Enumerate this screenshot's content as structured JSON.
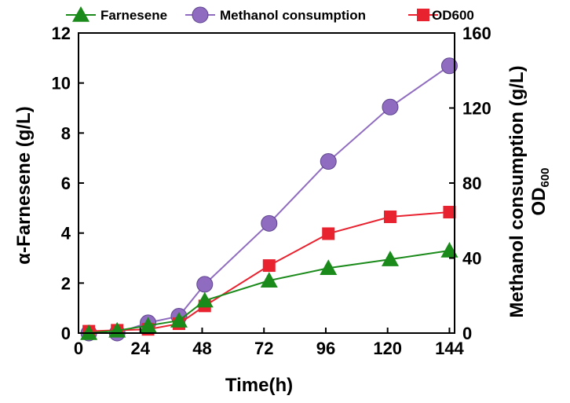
{
  "chart_data": {
    "type": "line",
    "x": [
      4,
      15,
      27,
      39,
      49,
      74,
      97,
      121,
      144
    ],
    "series": [
      {
        "name": "Farnesene",
        "axis": "left",
        "color": "#1a8a1a",
        "marker": "triangle",
        "values": [
          0.0,
          0.1,
          0.3,
          0.5,
          1.3,
          2.1,
          2.6,
          2.95,
          3.3
        ],
        "errors": [
          0,
          0,
          0,
          0,
          0,
          0,
          0,
          0,
          0
        ]
      },
      {
        "name": "Methanol consumption",
        "axis": "right",
        "color": "#8f6cbf",
        "marker": "circle",
        "values": [
          0,
          0,
          5.5,
          9,
          26,
          58.5,
          91.5,
          120.5,
          142.5
        ],
        "errors": [
          0,
          0,
          0,
          0,
          0,
          0,
          2,
          3,
          3.5
        ]
      },
      {
        "name": "OD600",
        "axis": "right",
        "color": "#e8222f",
        "marker": "square",
        "values": [
          1,
          1.5,
          2,
          5,
          14.5,
          36,
          53,
          62,
          64.5
        ],
        "errors": [
          0,
          0,
          0,
          0,
          0,
          0,
          0,
          0,
          0
        ]
      }
    ],
    "xlabel": "Time(h)",
    "ylabel_left": "α-Farnesene (g/L)",
    "ylabel_right_1": "Methanol consumption (g/L)",
    "ylabel_right_2_main": "OD",
    "ylabel_right_2_sub": "600",
    "xlim": [
      0,
      146
    ],
    "ylim_left": [
      0,
      12
    ],
    "ylim_right": [
      0,
      160
    ],
    "x_ticks": [
      0,
      24,
      48,
      72,
      96,
      120,
      144
    ],
    "y_ticks_left": [
      0,
      2,
      4,
      6,
      8,
      10,
      12
    ],
    "y_ticks_right": [
      0,
      40,
      80,
      120,
      160
    ],
    "grid": false,
    "legend_position": "top"
  }
}
